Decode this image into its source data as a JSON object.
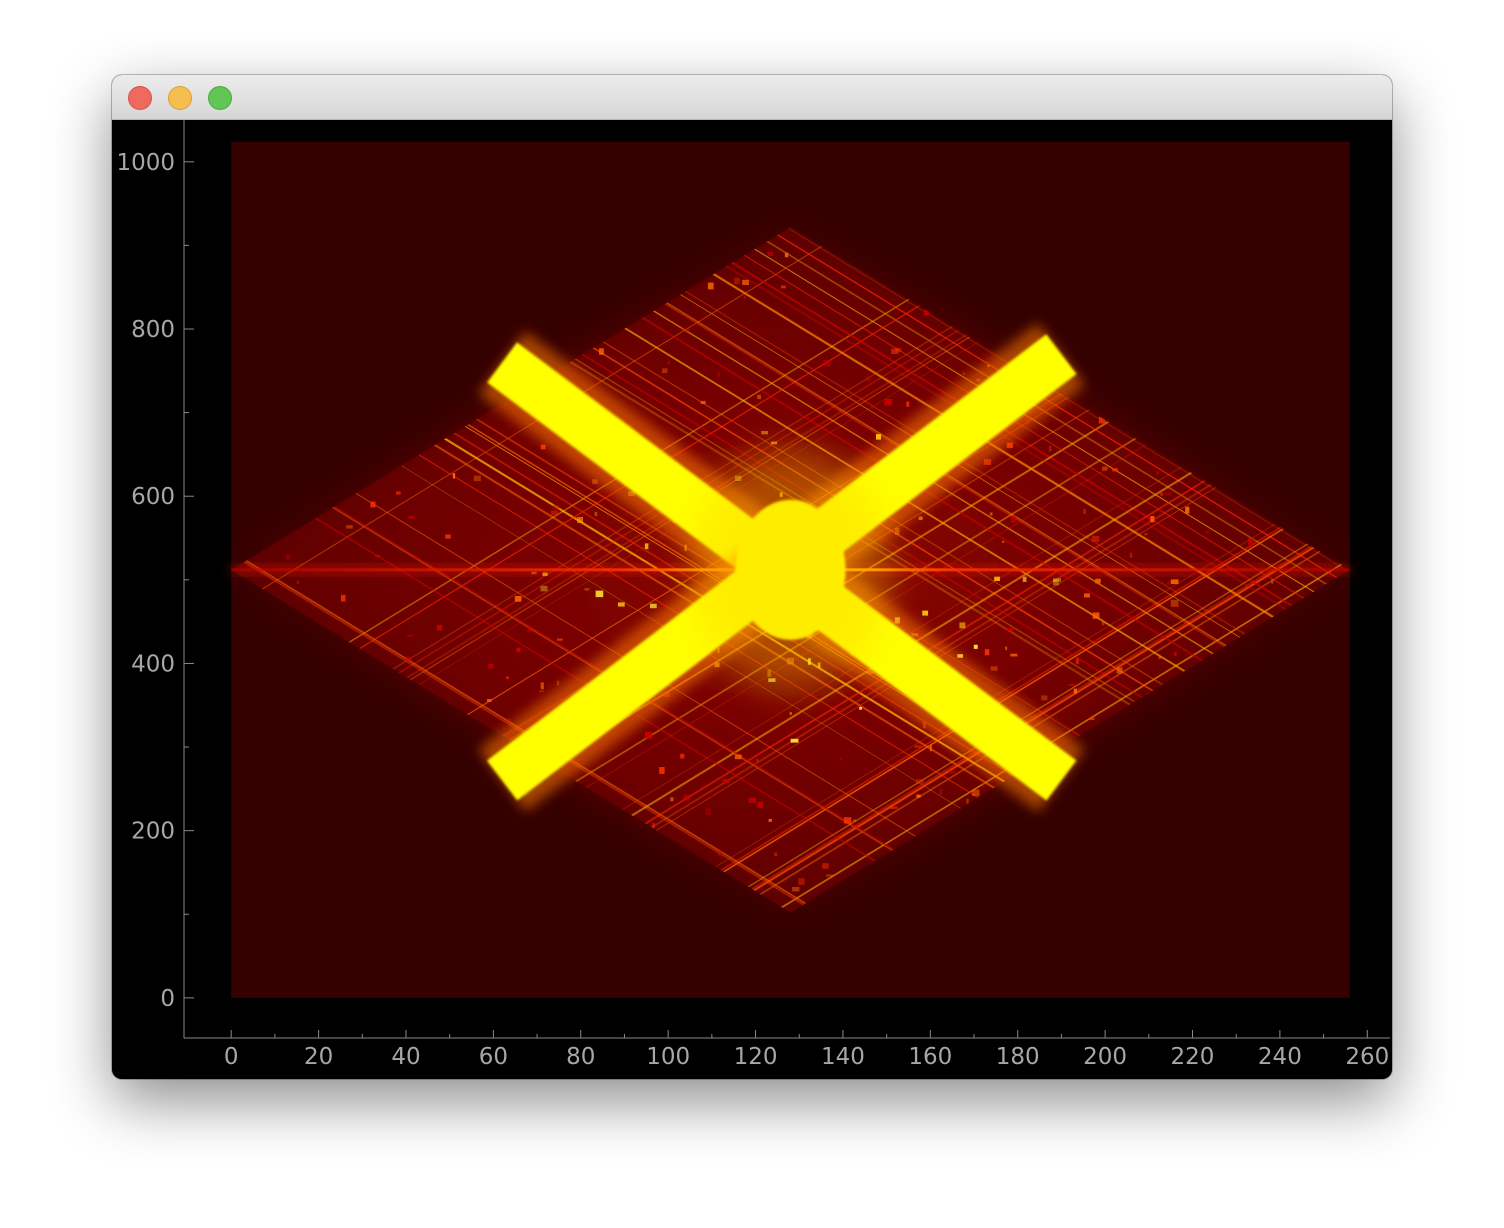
{
  "window": {
    "buttons": [
      {
        "name": "close",
        "color": "#ee6a5f"
      },
      {
        "name": "minimize",
        "color": "#f5be4f"
      },
      {
        "name": "zoom",
        "color": "#62c655"
      }
    ]
  },
  "chart_data": {
    "type": "heatmap",
    "colormap": "hot",
    "title": "",
    "xlabel": "",
    "ylabel": "",
    "xlim": [
      -10.8,
      265.2
    ],
    "ylim": [
      -48,
      1050
    ],
    "image_extent": {
      "x": [
        0,
        256
      ],
      "y": [
        0,
        1024
      ]
    },
    "xticks": [
      0,
      20,
      40,
      60,
      80,
      100,
      120,
      140,
      160,
      180,
      200,
      220,
      240,
      260
    ],
    "yticks": [
      0,
      200,
      400,
      600,
      800,
      1000
    ],
    "xtick_labels": [
      "0",
      "20",
      "40",
      "60",
      "80",
      "100",
      "120",
      "140",
      "160",
      "180",
      "200",
      "220",
      "240",
      "260"
    ],
    "ytick_labels": [
      "0",
      "200",
      "400",
      "600",
      "800",
      "1000"
    ],
    "background_color": "#350000",
    "features": {
      "diamond_center": [
        128,
        512
      ],
      "diamond_half_width": 128,
      "diamond_half_height": 410,
      "horizontal_streak_y": 512,
      "saturated_band_1": {
        "from": [
          62,
          760
        ],
        "to": [
          190,
          260
        ]
      },
      "saturated_band_2": {
        "from": [
          62,
          260
        ],
        "to": [
          190,
          770
        ]
      }
    },
    "grid": false,
    "legend": "none"
  }
}
